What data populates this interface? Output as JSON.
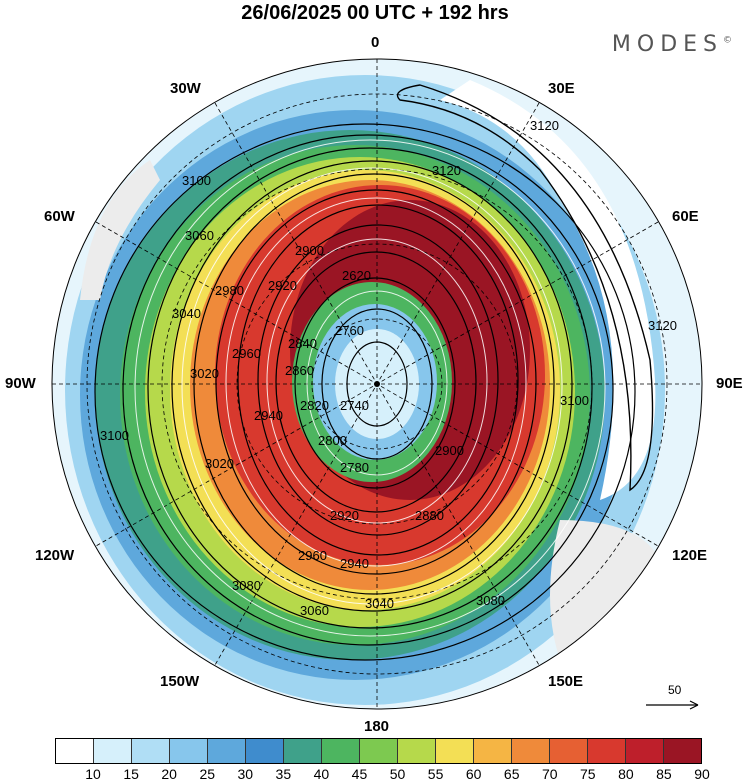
{
  "title": "26/06/2025  00 UTC  + 192 hrs",
  "brand": "MODES",
  "brand_mark": "©",
  "longitude_labels": {
    "n": "0",
    "ne": "30E",
    "ene": "60E",
    "e": "90E",
    "ese": "120E",
    "se": "150E",
    "s": "180",
    "sw": "150W",
    "wsw": "120W",
    "w": "90W",
    "wnw": "60W",
    "nw": "30W"
  },
  "contour_labels": [
    "3120",
    "3120",
    "3120",
    "3100",
    "3100",
    "3100",
    "3080",
    "3080",
    "3060",
    "3060",
    "3040",
    "3040",
    "3020",
    "3020",
    "2980",
    "2960",
    "2960",
    "2940",
    "2940",
    "2920",
    "2920",
    "2900",
    "2900",
    "2880",
    "2860",
    "2840",
    "2820",
    "2800",
    "2780",
    "2760",
    "2740",
    "2620"
  ],
  "reference_vector": "50",
  "colorbar": {
    "ticks": [
      "10",
      "15",
      "20",
      "25",
      "30",
      "35",
      "40",
      "45",
      "50",
      "55",
      "60",
      "65",
      "70",
      "75",
      "80",
      "85",
      "90"
    ],
    "colors": [
      "#ffffff",
      "#d6f0fb",
      "#b0def5",
      "#87c6ec",
      "#5ea8dc",
      "#3f8ccd",
      "#3fa18a",
      "#4db560",
      "#7dc950",
      "#b6d94b",
      "#f3df55",
      "#f5b544",
      "#ef8a3a",
      "#e66033",
      "#d8392e",
      "#be1f2b",
      "#9a1524"
    ]
  }
}
